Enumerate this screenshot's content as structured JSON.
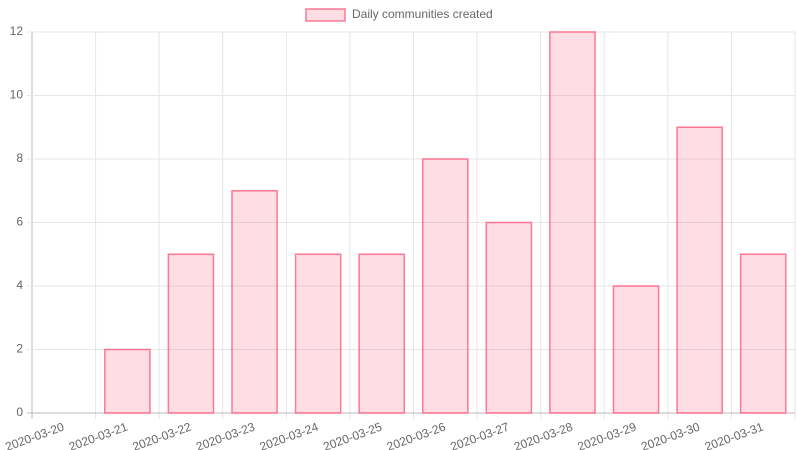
{
  "chart_data": {
    "type": "bar",
    "categories": [
      "2020-03-20",
      "2020-03-21",
      "2020-03-22",
      "2020-03-23",
      "2020-03-24",
      "2020-03-25",
      "2020-03-26",
      "2020-03-27",
      "2020-03-28",
      "2020-03-29",
      "2020-03-30",
      "2020-03-31"
    ],
    "series": [
      {
        "name": "Daily communities created",
        "color": "#ff6384",
        "values": [
          0,
          2,
          5,
          7,
          5,
          5,
          8,
          6,
          12,
          4,
          9,
          5
        ]
      }
    ],
    "ylim": [
      0,
      12
    ],
    "yticks": [
      0,
      2,
      4,
      6,
      8,
      10,
      12
    ],
    "grid": true,
    "legend": "top"
  }
}
